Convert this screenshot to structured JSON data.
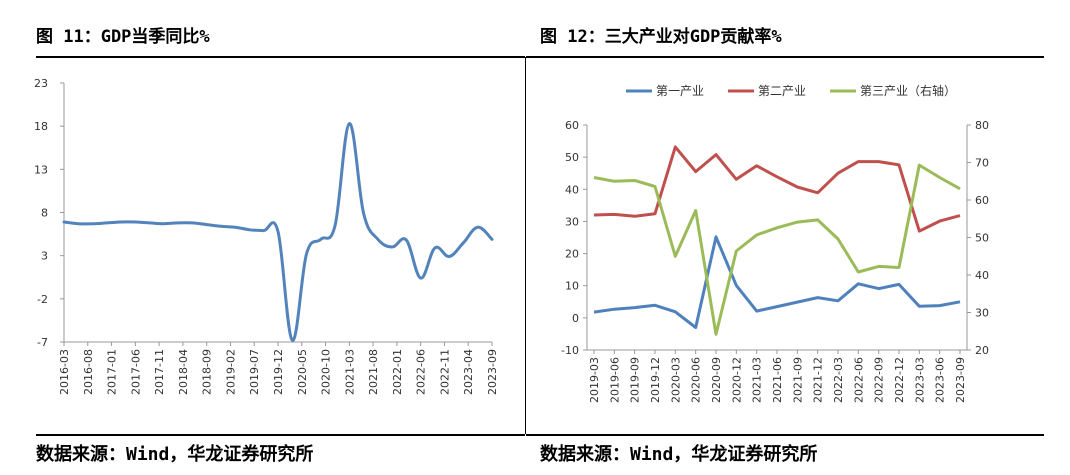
{
  "left": {
    "figure_title": "图 11：GDP当季同比%",
    "source": "数据来源：Wind，华龙证券研究所"
  },
  "right": {
    "figure_title": "图 12：三大产业对GDP贡献率%",
    "source": "数据来源：Wind，华龙证券研究所"
  },
  "chart_data": [
    {
      "type": "line",
      "title": "",
      "xlabel": "",
      "ylabel": "",
      "ylim": [
        -7,
        23
      ],
      "yticks": [
        23,
        18,
        13,
        8,
        3,
        -2,
        -7
      ],
      "grid": false,
      "legend": "none",
      "categories": [
        "2016-03",
        "2016-08",
        "2017-01",
        "2017-06",
        "2017-11",
        "2018-04",
        "2018-09",
        "2019-02",
        "2019-07",
        "2019-12",
        "2020-05",
        "2020-10",
        "2021-03",
        "2021-08",
        "2022-01",
        "2022-06",
        "2022-11",
        "2023-04",
        "2023-09"
      ],
      "series": [
        {
          "color": "#5383bb",
          "points": [
            [
              2016.0,
              6.9
            ],
            [
              2016.25,
              6.7
            ],
            [
              2016.5,
              6.7
            ],
            [
              2016.75,
              6.8
            ],
            [
              2017.0,
              6.9
            ],
            [
              2017.25,
              6.9
            ],
            [
              2017.5,
              6.8
            ],
            [
              2017.75,
              6.7
            ],
            [
              2018.0,
              6.8
            ],
            [
              2018.25,
              6.8
            ],
            [
              2018.5,
              6.6
            ],
            [
              2018.75,
              6.4
            ],
            [
              2019.0,
              6.3
            ],
            [
              2019.25,
              6.0
            ],
            [
              2019.5,
              5.9
            ],
            [
              2019.75,
              5.8
            ],
            [
              2020.0,
              -6.8
            ],
            [
              2020.25,
              3.2
            ],
            [
              2020.5,
              4.9
            ],
            [
              2020.75,
              6.5
            ],
            [
              2021.0,
              18.3
            ],
            [
              2021.25,
              7.9
            ],
            [
              2021.5,
              4.9
            ],
            [
              2021.75,
              4.0
            ],
            [
              2022.0,
              4.8
            ],
            [
              2022.25,
              0.4
            ],
            [
              2022.5,
              3.9
            ],
            [
              2022.75,
              2.9
            ],
            [
              2023.0,
              4.5
            ],
            [
              2023.25,
              6.3
            ],
            [
              2023.5,
              4.9
            ]
          ]
        }
      ]
    },
    {
      "type": "line",
      "title": "",
      "xlabel": "",
      "ylabel": "",
      "ylim": [
        -10,
        60
      ],
      "yticks": [
        60,
        50,
        40,
        30,
        20,
        10,
        0,
        -10
      ],
      "ylim_right": [
        20,
        80
      ],
      "yticks_right": [
        80,
        70,
        60,
        50,
        40,
        30,
        20
      ],
      "grid": false,
      "legend": "top",
      "categories": [
        "2019-03",
        "2019-06",
        "2019-09",
        "2019-12",
        "2020-03",
        "2020-06",
        "2020-09",
        "2020-12",
        "2021-03",
        "2021-06",
        "2021-09",
        "2021-12",
        "2022-03",
        "2022-06",
        "2022-09",
        "2022-12",
        "2023-03",
        "2023-06",
        "2023-09"
      ],
      "series": [
        {
          "name": "第一产业",
          "axis": "left",
          "color": "#4f81bd",
          "values": [
            1.8,
            2.7,
            3.2,
            3.9,
            1.9,
            -3.0,
            25.2,
            10.1,
            2.1,
            3.5,
            4.9,
            6.3,
            5.3,
            10.6,
            9.1,
            10.4,
            3.6,
            3.8,
            5.0
          ]
        },
        {
          "name": "第二产业",
          "axis": "left",
          "color": "#c0504d",
          "values": [
            32.0,
            32.2,
            31.6,
            32.4,
            53.2,
            45.5,
            50.8,
            43.1,
            47.3,
            43.9,
            40.7,
            38.9,
            45.0,
            48.6,
            48.6,
            47.6,
            27.0,
            30.1,
            31.8
          ]
        },
        {
          "name": "第三产业（右轴）",
          "axis": "right",
          "color": "#9bbb59",
          "values": [
            66.0,
            65.0,
            65.2,
            63.6,
            45.0,
            57.2,
            24.2,
            46.4,
            50.7,
            52.6,
            54.1,
            54.7,
            49.6,
            40.8,
            42.3,
            42.0,
            69.3,
            66.0,
            63.0
          ]
        }
      ]
    }
  ]
}
